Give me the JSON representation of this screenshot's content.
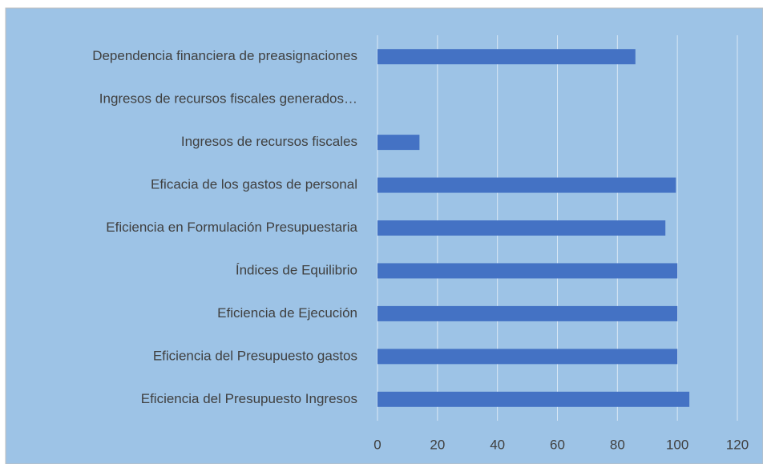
{
  "chart_data": {
    "type": "bar",
    "orientation": "horizontal",
    "categories": [
      "Dependencia financiera de preasignaciones",
      "Ingresos de recursos fiscales generados…",
      "Ingresos de recursos fiscales",
      "Eficacia de los gastos de personal",
      "Eficiencia en Formulación Presupuestaria",
      "Índices de Equilibrio",
      "Eficiencia de Ejecución",
      "Eficiencia del Presupuesto gastos",
      "Eficiencia del Presupuesto Ingresos"
    ],
    "values": [
      86,
      0,
      14,
      99.5,
      96,
      100,
      100,
      100,
      104
    ],
    "color": "#4472c4",
    "xlim": [
      0,
      120
    ],
    "xticks": [
      0,
      20,
      40,
      60,
      80,
      100,
      120
    ],
    "grid": true
  }
}
